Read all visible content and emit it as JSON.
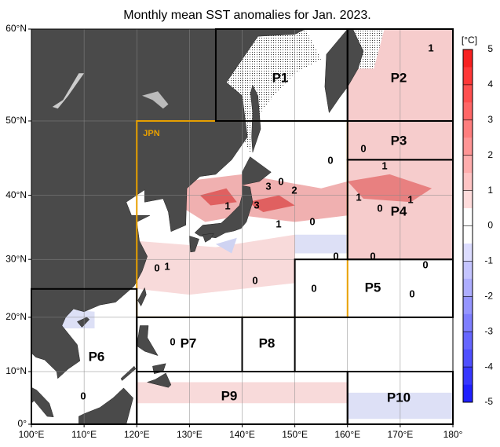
{
  "title": "Monthly mean SST anomalies for Jan. 2023.",
  "lat_ticks": [
    {
      "value": 60,
      "label": "60°N"
    },
    {
      "value": 50,
      "label": "50°N"
    },
    {
      "value": 40,
      "label": "40°N"
    },
    {
      "value": 30,
      "label": "30°N"
    },
    {
      "value": 20,
      "label": "20°N"
    },
    {
      "value": 10,
      "label": "10°N"
    },
    {
      "value": 0,
      "label": "0°"
    }
  ],
  "lon_ticks": [
    {
      "value": 100,
      "label": "100°E"
    },
    {
      "value": 110,
      "label": "110°E"
    },
    {
      "value": 120,
      "label": "120°E"
    },
    {
      "value": 130,
      "label": "130°E"
    },
    {
      "value": 140,
      "label": "140°E"
    },
    {
      "value": 150,
      "label": "150°E"
    },
    {
      "value": 160,
      "label": "160°E"
    },
    {
      "value": 170,
      "label": "170°E"
    },
    {
      "value": 180,
      "label": "180°"
    }
  ],
  "regions": [
    "JPN",
    "P1",
    "P2",
    "P3",
    "P4",
    "P5",
    "P6",
    "P7",
    "P8",
    "P9",
    "P10"
  ],
  "colorbar": {
    "unit": "[°C]",
    "ticks": [
      5,
      4,
      3,
      2,
      1,
      0,
      -1,
      -2,
      -3,
      -4,
      -5
    ]
  },
  "contour_labels": [
    "1",
    "0",
    "1",
    "0",
    "3",
    "0",
    "2",
    "1",
    "3",
    "1",
    "0",
    "1",
    "0",
    "1",
    "0",
    "0",
    "0",
    "0",
    "1",
    "0",
    "0",
    "0",
    "0",
    "0"
  ]
}
